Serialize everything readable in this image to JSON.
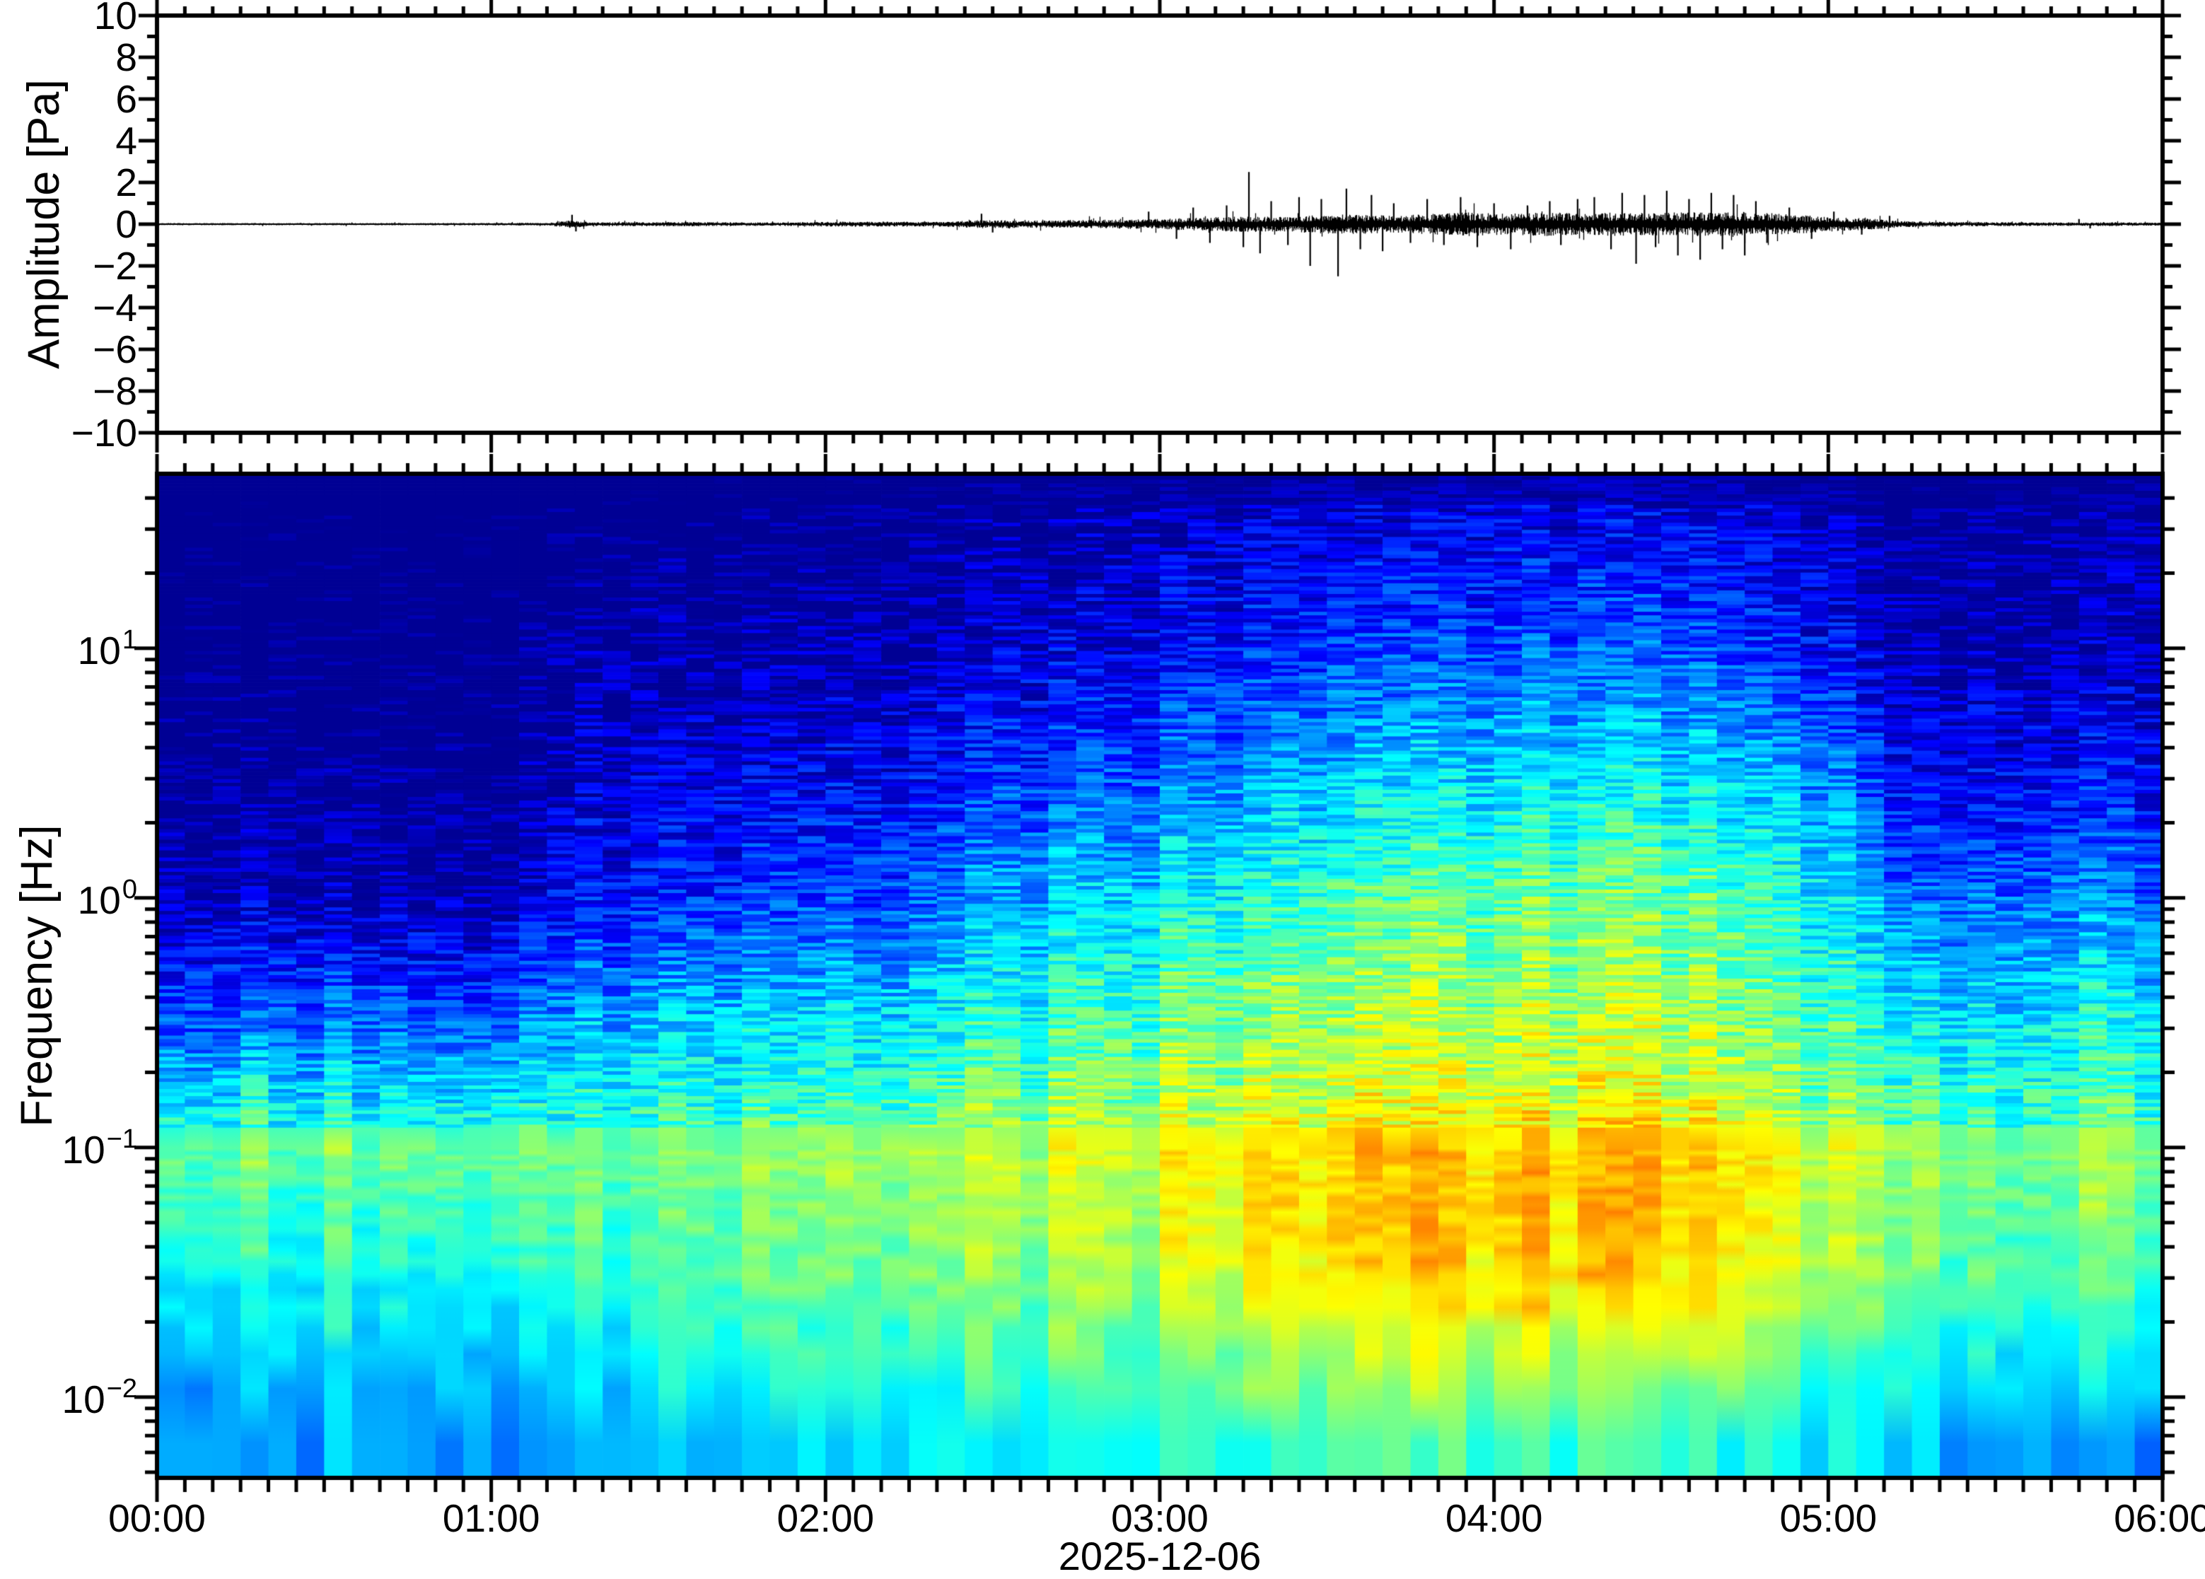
{
  "colors": {
    "background": "#ffffff",
    "frame": "#000000",
    "trace": "#000000",
    "colormap_low": "#000080",
    "colormap_high": "#e05040"
  },
  "chart_data": [
    {
      "type": "line",
      "panel": "top",
      "title": "",
      "ylabel": "Amplitude [Pa]",
      "ylim": [
        -10,
        10
      ],
      "ytick_step": 2,
      "ytick_values": [
        10,
        8,
        6,
        4,
        2,
        0,
        -2,
        -4,
        -6,
        -8,
        -10
      ],
      "ytick_labels": [
        "10",
        "8",
        "6",
        "4",
        "2",
        "0",
        "−2",
        "−4",
        "−6",
        "−8",
        "−10"
      ],
      "x_range_hours": [
        0,
        6
      ],
      "xtick_interval_minutes": {
        "major": 60,
        "minor": 5
      },
      "grid": false,
      "series": [
        {
          "name": "infrasound pressure trace",
          "unit": "Pa",
          "envelope_keypoints_min_pa": [
            [
              0,
              0.045
            ],
            [
              55,
              0.05
            ],
            [
              70,
              0.06
            ],
            [
              74,
              0.16
            ],
            [
              78,
              0.08
            ],
            [
              95,
              0.09
            ],
            [
              110,
              0.07
            ],
            [
              125,
              0.11
            ],
            [
              140,
              0.1
            ],
            [
              148,
              0.17
            ],
            [
              160,
              0.15
            ],
            [
              172,
              0.19
            ],
            [
              180,
              0.22
            ],
            [
              188,
              0.28
            ],
            [
              195,
              0.33
            ],
            [
              202,
              0.3
            ],
            [
              208,
              0.38
            ],
            [
              215,
              0.42
            ],
            [
              222,
              0.36
            ],
            [
              228,
              0.42
            ],
            [
              235,
              0.5
            ],
            [
              242,
              0.44
            ],
            [
              250,
              0.5
            ],
            [
              256,
              0.44
            ],
            [
              262,
              0.5
            ],
            [
              268,
              0.46
            ],
            [
              274,
              0.52
            ],
            [
              280,
              0.48
            ],
            [
              286,
              0.52
            ],
            [
              292,
              0.44
            ],
            [
              297,
              0.36
            ],
            [
              302,
              0.3
            ],
            [
              308,
              0.22
            ],
            [
              313,
              0.14
            ],
            [
              318,
              0.11
            ],
            [
              326,
              0.09
            ],
            [
              335,
              0.08
            ],
            [
              345,
              0.07
            ],
            [
              352,
              0.08
            ],
            [
              360,
              0.06
            ]
          ],
          "spikes_min_pa": [
            [
              74.5,
              0.45
            ],
            [
              75.2,
              -0.35
            ],
            [
              148,
              0.5
            ],
            [
              150,
              -0.4
            ],
            [
              178,
              0.6
            ],
            [
              183,
              -0.7
            ],
            [
              186,
              0.8
            ],
            [
              189,
              -0.9
            ],
            [
              192,
              0.9
            ],
            [
              195,
              -1.1
            ],
            [
              196,
              2.5
            ],
            [
              198,
              -1.4
            ],
            [
              200,
              1.1
            ],
            [
              203,
              -1.0
            ],
            [
              205,
              1.3
            ],
            [
              207,
              -2.0
            ],
            [
              209,
              1.2
            ],
            [
              212,
              -2.5
            ],
            [
              213.5,
              1.7
            ],
            [
              216,
              -1.2
            ],
            [
              218,
              1.4
            ],
            [
              220,
              -1.3
            ],
            [
              222,
              1.0
            ],
            [
              225,
              -0.9
            ],
            [
              228,
              1.2
            ],
            [
              231,
              -1.0
            ],
            [
              234,
              1.3
            ],
            [
              237,
              -1.1
            ],
            [
              240,
              1.0
            ],
            [
              243,
              -1.2
            ],
            [
              246,
              0.9
            ],
            [
              250,
              1.1
            ],
            [
              252,
              -1.0
            ],
            [
              255,
              1.2
            ],
            [
              258,
              1.3
            ],
            [
              261,
              -1.2
            ],
            [
              263,
              1.5
            ],
            [
              265.5,
              -1.9
            ],
            [
              267,
              1.4
            ],
            [
              269,
              -1.1
            ],
            [
              271,
              1.6
            ],
            [
              273,
              -1.5
            ],
            [
              275,
              1.2
            ],
            [
              277,
              -1.7
            ],
            [
              279,
              1.5
            ],
            [
              281,
              -1.2
            ],
            [
              283,
              1.4
            ],
            [
              285,
              -1.5
            ],
            [
              287,
              1.1
            ],
            [
              289,
              -0.9
            ],
            [
              293,
              0.8
            ],
            [
              297,
              -0.7
            ],
            [
              301,
              0.6
            ],
            [
              306,
              -0.5
            ],
            [
              311,
              0.4
            ],
            [
              345,
              0.25
            ],
            [
              347,
              -0.2
            ]
          ]
        }
      ]
    },
    {
      "type": "heatmap",
      "panel": "bottom",
      "ylabel": "Frequency [Hz]",
      "xlabel": "2025-12-06",
      "yscale": "log",
      "ylim_hz": [
        0.00474,
        50
      ],
      "ytick_labels": [
        {
          "base": "10",
          "exp": "1",
          "value_hz": 10
        },
        {
          "base": "10",
          "exp": "0",
          "value_hz": 1
        },
        {
          "base": "10",
          "exp": "−1",
          "value_hz": 0.1
        },
        {
          "base": "10",
          "exp": "−2",
          "value_hz": 0.01
        }
      ],
      "xtick_labels": [
        "00:00",
        "01:00",
        "02:00",
        "03:00",
        "04:00",
        "05:00",
        "06:00"
      ],
      "xtick_interval_minutes": {
        "major": 60,
        "minor": 5
      },
      "colormap": "jet",
      "time_bin_minutes": 5,
      "value_scale": "relative spectral power, 0 = minimum (dark blue), 1 = maximum (red)",
      "time_anchors_hours": [
        0,
        0.5,
        1,
        1.25,
        1.75,
        2.25,
        2.5,
        3,
        3.5,
        4,
        4.5,
        5,
        5.25,
        5.6,
        6
      ],
      "freq_anchors_hz": [
        50,
        10,
        3,
        1,
        0.3,
        0.1,
        0.03,
        0.01,
        0.005
      ],
      "value_grid": [
        [
          0.04,
          0.07,
          0.1,
          0.17,
          0.34,
          0.6,
          0.48,
          0.38,
          0.33
        ],
        [
          0.04,
          0.07,
          0.1,
          0.16,
          0.36,
          0.58,
          0.48,
          0.4,
          0.34
        ],
        [
          0.03,
          0.06,
          0.09,
          0.14,
          0.32,
          0.57,
          0.45,
          0.36,
          0.3
        ],
        [
          0.06,
          0.12,
          0.17,
          0.24,
          0.42,
          0.58,
          0.52,
          0.42,
          0.35
        ],
        [
          0.07,
          0.13,
          0.2,
          0.28,
          0.46,
          0.6,
          0.55,
          0.45,
          0.38
        ],
        [
          0.07,
          0.14,
          0.22,
          0.31,
          0.48,
          0.62,
          0.57,
          0.47,
          0.39
        ],
        [
          0.11,
          0.18,
          0.28,
          0.4,
          0.54,
          0.66,
          0.6,
          0.49,
          0.41
        ],
        [
          0.13,
          0.22,
          0.34,
          0.48,
          0.6,
          0.7,
          0.66,
          0.53,
          0.44
        ],
        [
          0.15,
          0.28,
          0.42,
          0.56,
          0.66,
          0.76,
          0.74,
          0.58,
          0.46
        ],
        [
          0.16,
          0.31,
          0.47,
          0.6,
          0.68,
          0.78,
          0.77,
          0.6,
          0.48
        ],
        [
          0.17,
          0.33,
          0.49,
          0.62,
          0.7,
          0.8,
          0.78,
          0.6,
          0.46
        ],
        [
          0.13,
          0.24,
          0.38,
          0.5,
          0.58,
          0.68,
          0.64,
          0.5,
          0.4
        ],
        [
          0.07,
          0.13,
          0.2,
          0.32,
          0.48,
          0.6,
          0.56,
          0.44,
          0.35
        ],
        [
          0.11,
          0.16,
          0.24,
          0.37,
          0.52,
          0.62,
          0.56,
          0.44,
          0.35
        ],
        [
          0.12,
          0.16,
          0.23,
          0.35,
          0.5,
          0.6,
          0.53,
          0.4,
          0.29
        ]
      ]
    }
  ]
}
